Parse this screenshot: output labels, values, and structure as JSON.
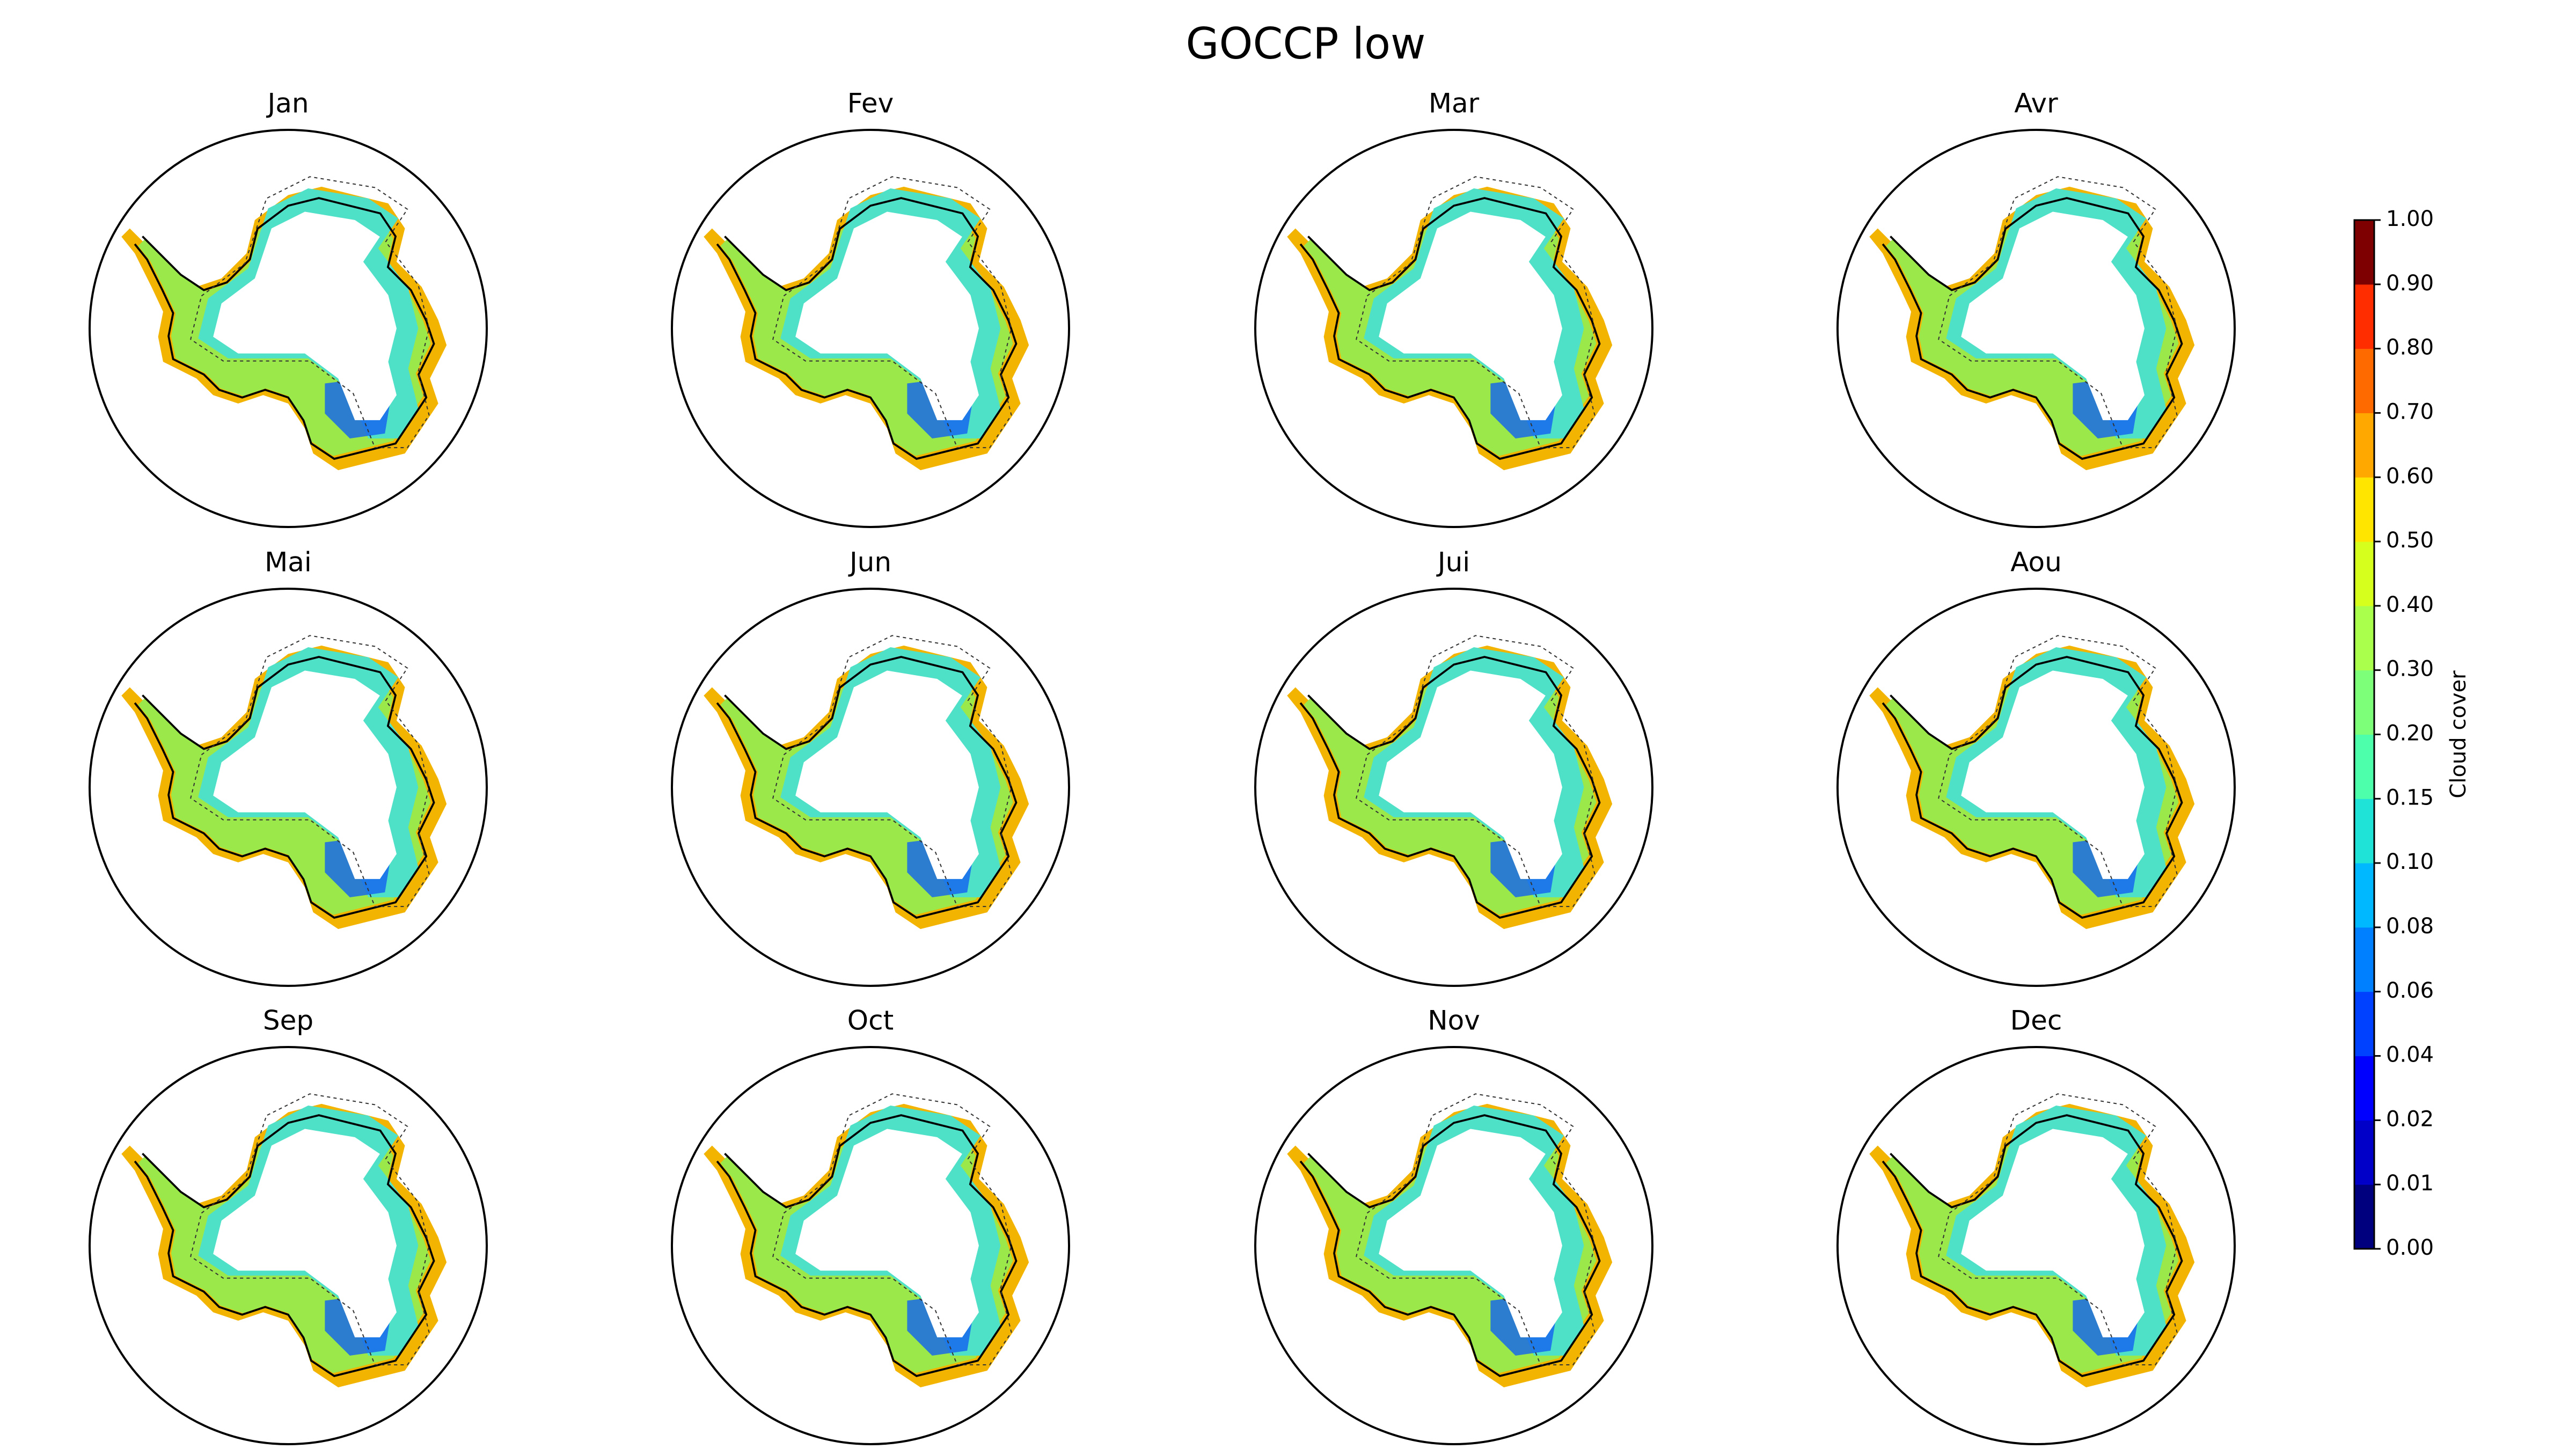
{
  "title": "GOCCP low",
  "panels": [
    "Jan",
    "Fev",
    "Mar",
    "Avr",
    "Mai",
    "Jun",
    "Jui",
    "Aou",
    "Sep",
    "Oct",
    "Nov",
    "Dec"
  ],
  "colorbar": {
    "label": "Cloud cover",
    "ticks": [
      {
        "value": 0,
        "label": "0.00"
      },
      {
        "value": 0.01,
        "label": "0.01"
      },
      {
        "value": 0.02,
        "label": "0.02"
      },
      {
        "value": 0.04,
        "label": "0.04"
      },
      {
        "value": 0.06,
        "label": "0.06"
      },
      {
        "value": 0.08,
        "label": "0.08"
      },
      {
        "value": 0.1,
        "label": "0.10"
      },
      {
        "value": 0.15,
        "label": "0.15"
      },
      {
        "value": 0.2,
        "label": "0.20"
      },
      {
        "value": 0.3,
        "label": "0.30"
      },
      {
        "value": 0.4,
        "label": "0.40"
      },
      {
        "value": 0.5,
        "label": "0.50"
      },
      {
        "value": 0.6,
        "label": "0.60"
      },
      {
        "value": 0.7,
        "label": "0.70"
      },
      {
        "value": 0.8,
        "label": "0.80"
      },
      {
        "value": 0.9,
        "label": "0.90"
      },
      {
        "value": 1,
        "label": "1.00"
      }
    ],
    "colors": [
      "#00007f",
      "#0000c8",
      "#0000ff",
      "#0040ff",
      "#0080ff",
      "#00b8ff",
      "#1ee3d6",
      "#4dffaa",
      "#7dff7a",
      "#aaff4d",
      "#d6ff1e",
      "#ffe500",
      "#ffa800",
      "#ff6a00",
      "#ff2d00",
      "#7f0000"
    ]
  }
}
